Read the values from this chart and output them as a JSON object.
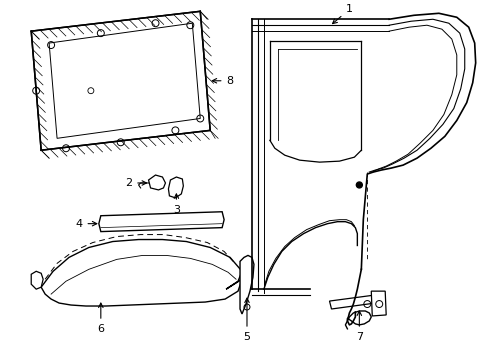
{
  "background_color": "#ffffff",
  "line_color": "#000000",
  "lw": 1.0,
  "fig_width": 4.89,
  "fig_height": 3.6,
  "dpi": 100,
  "label_fontsize": 8
}
